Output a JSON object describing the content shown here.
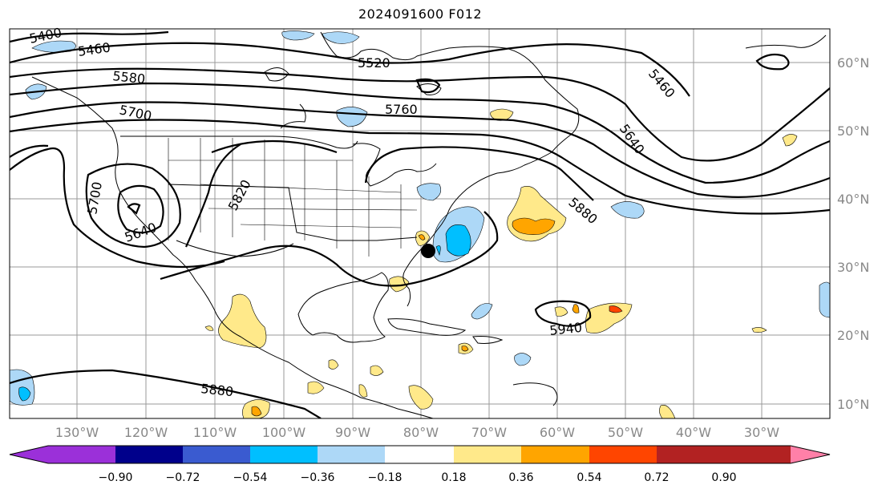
{
  "title": "2024091600 F012",
  "map": {
    "lon_ticks": [
      "130°W",
      "120°W",
      "110°W",
      "100°W",
      "90°W",
      "80°W",
      "70°W",
      "60°W",
      "50°W",
      "40°W",
      "30°W"
    ],
    "lat_ticks": [
      "60°N",
      "50°N",
      "40°N",
      "30°N",
      "20°N",
      "10°N"
    ],
    "contour_labels": [
      "5400",
      "5460",
      "5520",
      "5580",
      "5700",
      "5760",
      "5460",
      "5640",
      "5700",
      "5820",
      "5640",
      "5880",
      "5940",
      "5880"
    ],
    "marker": "storm-center-dot"
  },
  "colorbar": {
    "colors": [
      "#9b30d9",
      "#00008b",
      "#3a5bd0",
      "#00bfff",
      "#add8f7",
      "#ffffff",
      "#ffe98a",
      "#ffa500",
      "#ff4500",
      "#b22222",
      "#ff80a8"
    ],
    "labels": [
      "−0.90",
      "−0.72",
      "−0.54",
      "−0.36",
      "−0.18",
      "0.18",
      "0.36",
      "0.54",
      "0.72",
      "0.90"
    ]
  }
}
